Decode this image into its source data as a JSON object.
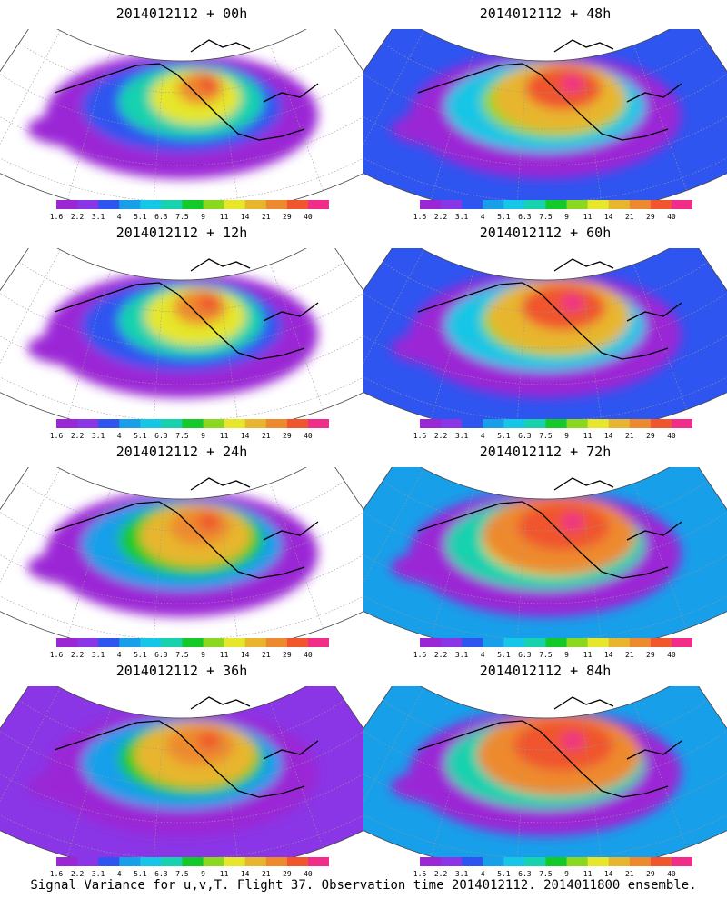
{
  "chart_data": {
    "type": "heatmap",
    "field": "",
    "colorbar": {
      "ticks": [
        "1.6",
        "2.2",
        "3.1",
        "4",
        "5.1",
        "6.3",
        "7.5",
        "9",
        "11",
        "14",
        "21",
        "29",
        "40"
      ],
      "colors": [
        "#9b26d6",
        "#8a36e6",
        "#2f55f0",
        "#189fea",
        "#16c6e6",
        "#18d2ae",
        "#14c92a",
        "#8ad820",
        "#e6e62a",
        "#e8b62e",
        "#ee8a2e",
        "#f0552e",
        "#f02e8a"
      ]
    },
    "panels": [
      {
        "title": "2014012112 + 00h",
        "lead_hours": 0
      },
      {
        "title": "2014012112 + 48h",
        "lead_hours": 48
      },
      {
        "title": "2014012112 + 12h",
        "lead_hours": 12
      },
      {
        "title": "2014012112 + 60h",
        "lead_hours": 60
      },
      {
        "title": "2014012112 + 24h",
        "lead_hours": 24
      },
      {
        "title": "2014012112 + 72h",
        "lead_hours": 72
      },
      {
        "title": "2014012112 + 36h",
        "lead_hours": 36
      },
      {
        "title": "2014012112 + 84h",
        "lead_hours": 84
      }
    ],
    "caption": "Signal Variance for u,v,T. Flight 37. Observation time 2014012112. 2014011800 ensemble."
  }
}
